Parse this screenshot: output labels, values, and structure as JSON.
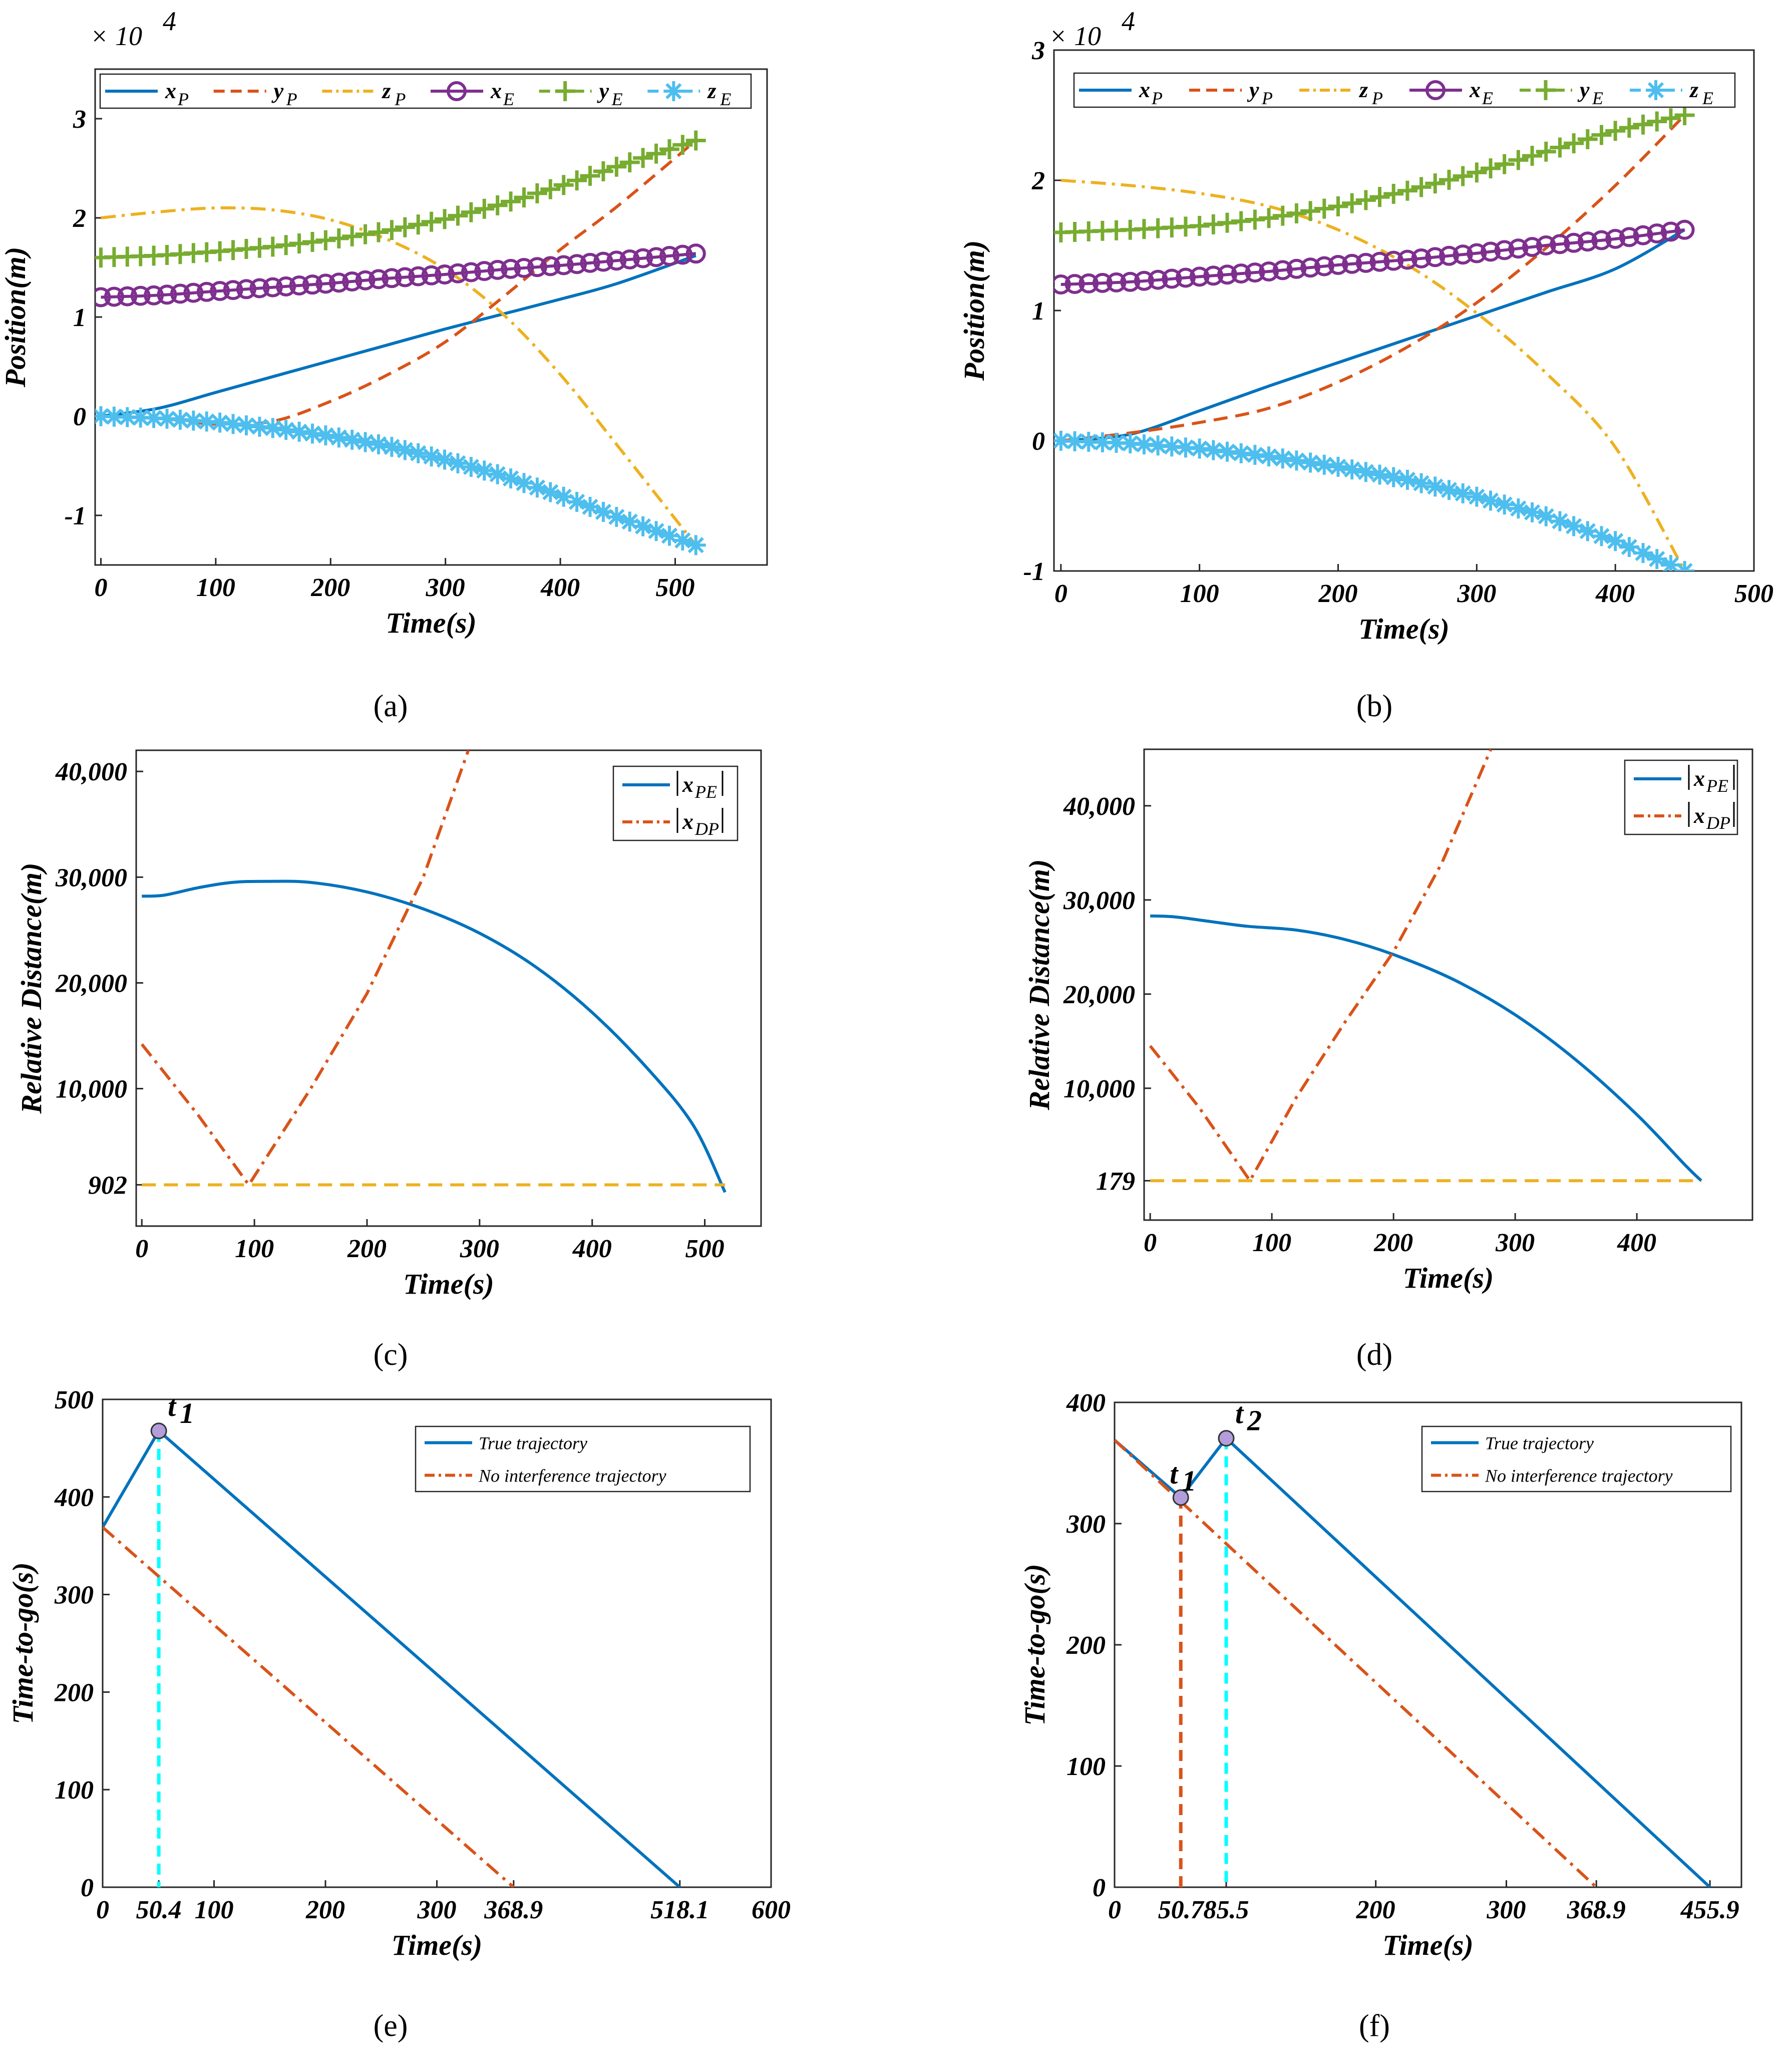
{
  "colors": {
    "blue": "#0072BD",
    "orange": "#D95319",
    "yellow": "#EDB120",
    "purple": "#7E2F8E",
    "green": "#77AC30",
    "cyan": "#4DBEEE",
    "marker_cyan": "#00FFFF"
  },
  "chart_data": [
    {
      "id": "a",
      "type": "line",
      "caption": "(a)",
      "xlabel": "Time(s)",
      "ylabel": "Position(m)",
      "exponent_label": "× 10",
      "exponent_power": "4",
      "xlim": [
        -5,
        580
      ],
      "ylim": [
        -1.5,
        3.5
      ],
      "xticks": [
        0,
        100,
        200,
        300,
        400,
        500
      ],
      "yticks": [
        -1,
        0,
        1,
        2,
        3
      ],
      "xticklabels": [
        "0",
        "100",
        "200",
        "300",
        "400",
        "500"
      ],
      "yticklabels": [
        "-1",
        "0",
        "1",
        "2",
        "3"
      ],
      "legend_position": "top",
      "series": [
        {
          "name": "xP",
          "label_main": "x",
          "label_sub": "P",
          "color": "blue",
          "style": "solid",
          "marker": "none",
          "x": [
            0,
            50,
            100,
            150,
            200,
            250,
            300,
            350,
            400,
            450,
            518
          ],
          "y": [
            0,
            0.08,
            0.24,
            0.4,
            0.56,
            0.72,
            0.88,
            1.03,
            1.18,
            1.34,
            1.62
          ]
        },
        {
          "name": "yP",
          "label_main": "y",
          "label_sub": "P",
          "color": "orange",
          "style": "dashed",
          "marker": "none",
          "x": [
            0,
            50,
            100,
            150,
            200,
            250,
            300,
            350,
            400,
            450,
            518
          ],
          "y": [
            0,
            -0.02,
            -0.08,
            -0.05,
            0.15,
            0.42,
            0.75,
            1.2,
            1.68,
            2.12,
            2.78
          ]
        },
        {
          "name": "zP",
          "label_main": "z",
          "label_sub": "P",
          "color": "yellow",
          "style": "dashdot",
          "marker": "none",
          "x": [
            0,
            50,
            100,
            150,
            200,
            250,
            300,
            350,
            400,
            450,
            518
          ],
          "y": [
            2.0,
            2.06,
            2.1,
            2.08,
            1.98,
            1.78,
            1.48,
            1.03,
            0.42,
            -0.3,
            -1.3
          ]
        },
        {
          "name": "xE",
          "label_main": "x",
          "label_sub": "E",
          "color": "purple",
          "style": "solid",
          "marker": "circle",
          "x": [
            0,
            50,
            100,
            150,
            200,
            250,
            300,
            350,
            400,
            450,
            518
          ],
          "y": [
            1.2,
            1.22,
            1.26,
            1.3,
            1.34,
            1.39,
            1.43,
            1.48,
            1.52,
            1.57,
            1.64
          ]
        },
        {
          "name": "yE",
          "label_main": "y",
          "label_sub": "E",
          "color": "green",
          "style": "dashed",
          "marker": "plus",
          "x": [
            0,
            50,
            100,
            150,
            200,
            250,
            300,
            350,
            400,
            450,
            518
          ],
          "y": [
            1.6,
            1.62,
            1.66,
            1.71,
            1.78,
            1.87,
            1.99,
            2.14,
            2.32,
            2.52,
            2.78
          ]
        },
        {
          "name": "zE",
          "label_main": "z",
          "label_sub": "E",
          "color": "cyan",
          "style": "dashed",
          "marker": "asterisk",
          "x": [
            0,
            50,
            100,
            150,
            200,
            250,
            300,
            350,
            400,
            450,
            518
          ],
          "y": [
            0,
            -0.02,
            -0.06,
            -0.12,
            -0.2,
            -0.3,
            -0.44,
            -0.6,
            -0.8,
            -1.02,
            -1.3
          ]
        }
      ]
    },
    {
      "id": "b",
      "type": "line",
      "caption": "(b)",
      "xlabel": "Time(s)",
      "ylabel": "Position(m)",
      "exponent_label": "× 10",
      "exponent_power": "4",
      "xlim": [
        -5,
        500
      ],
      "ylim": [
        -1.0,
        3.0
      ],
      "xticks": [
        0,
        100,
        200,
        300,
        400,
        500
      ],
      "yticks": [
        -1,
        0,
        1,
        2,
        3
      ],
      "xticklabels": [
        "0",
        "100",
        "200",
        "300",
        "400",
        "500"
      ],
      "yticklabels": [
        "-1",
        "0",
        "1",
        "2",
        "3"
      ],
      "legend_position": "top",
      "series": [
        {
          "name": "xP",
          "label_main": "x",
          "label_sub": "P",
          "color": "blue",
          "style": "solid",
          "marker": "none",
          "x": [
            0,
            50,
            100,
            150,
            200,
            250,
            300,
            350,
            400,
            450
          ],
          "y": [
            0,
            0.05,
            0.23,
            0.42,
            0.6,
            0.78,
            0.96,
            1.14,
            1.32,
            1.62
          ]
        },
        {
          "name": "yP",
          "label_main": "y",
          "label_sub": "P",
          "color": "orange",
          "style": "dashed",
          "marker": "none",
          "x": [
            0,
            50,
            100,
            150,
            200,
            250,
            300,
            350,
            400,
            450
          ],
          "y": [
            0,
            0.06,
            0.14,
            0.25,
            0.45,
            0.72,
            1.06,
            1.48,
            1.96,
            2.5
          ]
        },
        {
          "name": "zP",
          "label_main": "z",
          "label_sub": "P",
          "color": "yellow",
          "style": "dashdot",
          "marker": "none",
          "x": [
            0,
            50,
            100,
            150,
            200,
            250,
            300,
            350,
            400,
            450
          ],
          "y": [
            2.0,
            1.96,
            1.9,
            1.8,
            1.62,
            1.35,
            0.98,
            0.52,
            -0.05,
            -1.0
          ]
        },
        {
          "name": "xE",
          "label_main": "x",
          "label_sub": "E",
          "color": "purple",
          "style": "solid",
          "marker": "circle",
          "x": [
            0,
            50,
            100,
            150,
            200,
            250,
            300,
            350,
            400,
            450
          ],
          "y": [
            1.2,
            1.22,
            1.26,
            1.3,
            1.35,
            1.39,
            1.44,
            1.5,
            1.55,
            1.62
          ]
        },
        {
          "name": "yE",
          "label_main": "y",
          "label_sub": "E",
          "color": "green",
          "style": "dashed",
          "marker": "plus",
          "x": [
            0,
            50,
            100,
            150,
            200,
            250,
            300,
            350,
            400,
            450
          ],
          "y": [
            1.6,
            1.62,
            1.65,
            1.71,
            1.8,
            1.92,
            2.06,
            2.22,
            2.38,
            2.5
          ]
        },
        {
          "name": "zE",
          "label_main": "z",
          "label_sub": "E",
          "color": "cyan",
          "style": "dashed",
          "marker": "asterisk",
          "x": [
            0,
            50,
            100,
            150,
            200,
            250,
            300,
            350,
            400,
            450
          ],
          "y": [
            0,
            -0.02,
            -0.06,
            -0.12,
            -0.2,
            -0.3,
            -0.43,
            -0.58,
            -0.77,
            -1.0
          ]
        }
      ]
    },
    {
      "id": "c",
      "type": "line",
      "caption": "(c)",
      "xlabel": "Time(s)",
      "ylabel": "Relative Distance(m)",
      "xlim": [
        -5,
        550
      ],
      "ylim": [
        -3000,
        42000
      ],
      "xticks": [
        0,
        100,
        200,
        300,
        400,
        500
      ],
      "yticks": [
        902,
        10000,
        20000,
        30000,
        40000
      ],
      "xticklabels": [
        "0",
        "100",
        "200",
        "300",
        "400",
        "500"
      ],
      "yticklabels": [
        "902",
        "10,000",
        "20,000",
        "30,000",
        "40,000"
      ],
      "legend_position": "top-right",
      "series": [
        {
          "name": "|xPE|",
          "label_main": "x",
          "label_sub": "PE",
          "color": "blue",
          "style": "solid",
          "x": [
            0,
            20,
            50,
            80,
            110,
            150,
            200,
            250,
            300,
            350,
            400,
            450,
            490,
            518
          ],
          "y": [
            28200,
            28300,
            29000,
            29500,
            29600,
            29500,
            28600,
            27000,
            24700,
            21500,
            17200,
            11800,
            6500,
            200
          ]
        },
        {
          "name": "|xDP|",
          "label_main": "x",
          "label_sub": "DP",
          "color": "orange",
          "style": "dashdot",
          "x": [
            0,
            50,
            95,
            150,
            200,
            250,
            290
          ],
          "y": [
            14200,
            7500,
            902,
            10000,
            19000,
            30000,
            42000
          ]
        },
        {
          "name": "threshold",
          "label_main": "",
          "label_sub": "",
          "color": "yellow",
          "style": "dashed",
          "in_legend": false,
          "x": [
            0,
            518
          ],
          "y": [
            902,
            902
          ]
        }
      ]
    },
    {
      "id": "d",
      "type": "line",
      "caption": "(d)",
      "xlabel": "Time(s)",
      "ylabel": "Relative Distance(m)",
      "xlim": [
        -5,
        495
      ],
      "ylim": [
        -4000,
        46000
      ],
      "xticks": [
        0,
        100,
        200,
        300,
        400
      ],
      "yticks": [
        179,
        10000,
        20000,
        30000,
        40000
      ],
      "xticklabels": [
        "0",
        "100",
        "200",
        "300",
        "400"
      ],
      "yticklabels": [
        "179",
        "10,000",
        "20,000",
        "30,000",
        "40,000"
      ],
      "legend_position": "top-right",
      "series": [
        {
          "name": "|xPE|",
          "label_main": "x",
          "label_sub": "PE",
          "color": "blue",
          "style": "solid",
          "x": [
            0,
            20,
            50,
            80,
            120,
            160,
            200,
            250,
            300,
            350,
            400,
            440,
            453
          ],
          "y": [
            28300,
            28200,
            27700,
            27200,
            26800,
            25800,
            24200,
            21500,
            17800,
            13000,
            7200,
            1800,
            179
          ]
        },
        {
          "name": "|xDP|",
          "label_main": "x",
          "label_sub": "DP",
          "color": "orange",
          "style": "dashdot",
          "x": [
            0,
            40,
            82,
            120,
            160,
            200,
            240,
            280
          ],
          "y": [
            14500,
            8000,
            179,
            9000,
            17000,
            24500,
            34000,
            46000
          ]
        },
        {
          "name": "threshold",
          "label_main": "",
          "label_sub": "",
          "color": "yellow",
          "style": "dashed",
          "in_legend": false,
          "x": [
            0,
            453
          ],
          "y": [
            179,
            179
          ]
        }
      ]
    },
    {
      "id": "e",
      "type": "line",
      "caption": "(e)",
      "xlabel": "Time(s)",
      "ylabel": "Time-to-go(s)",
      "xlim": [
        0,
        600
      ],
      "ylim": [
        0,
        500
      ],
      "xticks": [
        0,
        50.4,
        100,
        200,
        300,
        368.9,
        518.1,
        600
      ],
      "yticks": [
        0,
        100,
        200,
        300,
        400,
        500
      ],
      "xticklabels": [
        "0",
        "50.4",
        "100",
        "200",
        "300",
        "368.9",
        "518.1",
        "600"
      ],
      "yticklabels": [
        "0",
        "100",
        "200",
        "300",
        "400",
        "500"
      ],
      "legend_position": "top-right",
      "series": [
        {
          "name": "True trajectory",
          "label_main": "True trajectory",
          "color": "blue",
          "style": "solid",
          "x": [
            0,
            50.4,
            518.1
          ],
          "y": [
            368.9,
            467.7,
            0
          ]
        },
        {
          "name": "No interference trajectory",
          "label_main": "No interference trajectory",
          "color": "orange",
          "style": "dashdot",
          "x": [
            0,
            368.9
          ],
          "y": [
            368.9,
            0
          ]
        }
      ],
      "annotations": [
        {
          "label": "t",
          "sub": "1",
          "x": 50.4,
          "y": 467.7,
          "vline_color": "marker_cyan"
        }
      ]
    },
    {
      "id": "f",
      "type": "line",
      "caption": "(f)",
      "xlabel": "Time(s)",
      "ylabel": "Time-to-go(s)",
      "xlim": [
        0,
        480
      ],
      "ylim": [
        0,
        400
      ],
      "xticks": [
        0,
        50.7,
        85.5,
        200,
        300,
        368.9,
        455.9
      ],
      "yticks": [
        0,
        100,
        200,
        300,
        400
      ],
      "xticklabels": [
        "0",
        "50.7",
        "85.5",
        "200",
        "300",
        "368.9",
        "455.9"
      ],
      "yticklabels": [
        "0",
        "100",
        "200",
        "300",
        "400"
      ],
      "legend_position": "top-right",
      "series": [
        {
          "name": "True trajectory",
          "label_main": "True trajectory",
          "color": "blue",
          "style": "solid",
          "x": [
            0,
            50.7,
            85.5,
            455.9
          ],
          "y": [
            368.9,
            321.5,
            370.4,
            0
          ]
        },
        {
          "name": "No interference trajectory",
          "label_main": "No interference trajectory",
          "color": "orange",
          "style": "dashdot",
          "x": [
            0,
            368.9
          ],
          "y": [
            368.9,
            0
          ]
        }
      ],
      "annotations": [
        {
          "label": "t",
          "sub": "1",
          "x": 50.7,
          "y": 321.5,
          "vline_color": "orange"
        },
        {
          "label": "t",
          "sub": "2",
          "x": 85.5,
          "y": 370.4,
          "vline_color": "marker_cyan"
        }
      ]
    }
  ]
}
